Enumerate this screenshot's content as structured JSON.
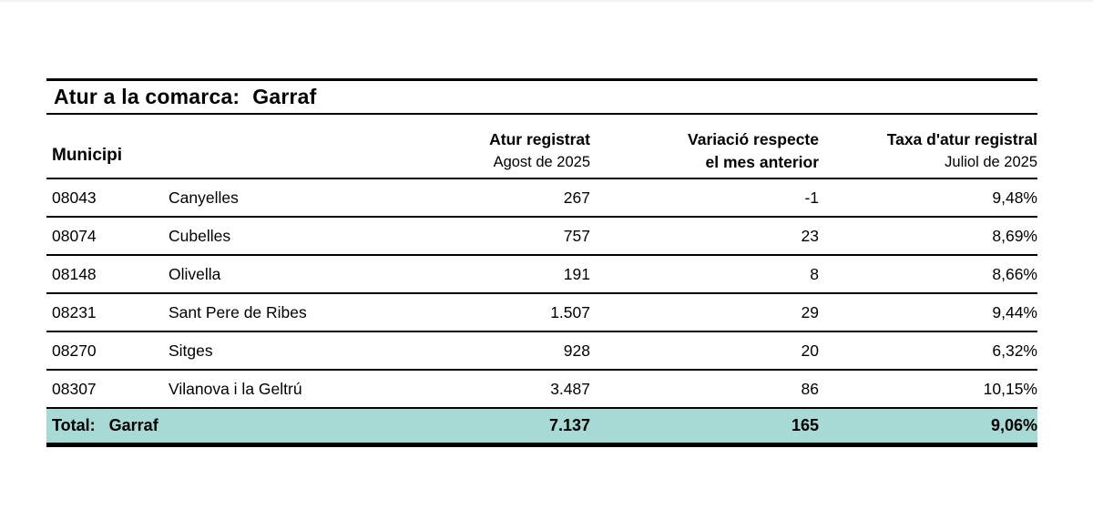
{
  "page": {
    "title_label": "Atur a la comarca:",
    "title_value": "Garraf"
  },
  "table": {
    "columns": {
      "municipi": "Municipi",
      "atur_line1": "Atur registrat",
      "atur_line2": "Agost de 2025",
      "variacio_line1": "Variació respecte",
      "variacio_line2": "el mes anterior",
      "taxa_line1": "Taxa d'atur registral",
      "taxa_line2": "Juliol de 2025"
    },
    "rows": [
      {
        "code": "08043",
        "name": "Canyelles",
        "atur": "267",
        "variacio": "-1",
        "taxa": "9,48%"
      },
      {
        "code": "08074",
        "name": "Cubelles",
        "atur": "757",
        "variacio": "23",
        "taxa": "8,69%"
      },
      {
        "code": "08148",
        "name": "Olivella",
        "atur": "191",
        "variacio": "8",
        "taxa": "8,66%"
      },
      {
        "code": "08231",
        "name": "Sant Pere de Ribes",
        "atur": "1.507",
        "variacio": "29",
        "taxa": "9,44%"
      },
      {
        "code": "08270",
        "name": "Sitges",
        "atur": "928",
        "variacio": "20",
        "taxa": "6,32%"
      },
      {
        "code": "08307",
        "name": "Vilanova i la Geltrú",
        "atur": "3.487",
        "variacio": "86",
        "taxa": "10,15%"
      }
    ],
    "total": {
      "label": "Total:",
      "name": "Garraf",
      "atur": "7.137",
      "variacio": "165",
      "taxa": "9,06%"
    },
    "colors": {
      "total_row_bg": "#a8dad5",
      "rule": "#000000",
      "text": "#000000"
    }
  }
}
